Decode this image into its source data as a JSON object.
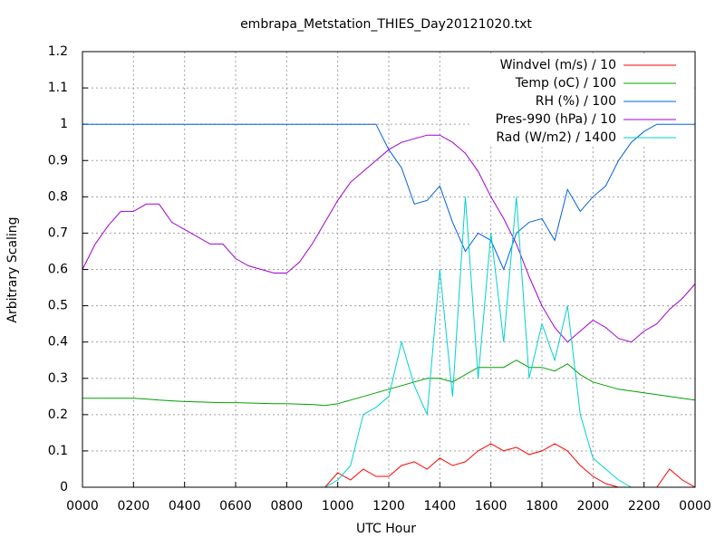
{
  "chart_data": {
    "type": "line",
    "title": "embrapa_Metstation_THIES_Day20121020.txt",
    "x_label": "UTC Hour",
    "y_label": "Arbitrary Scaling",
    "x": [
      0,
      0.5,
      1,
      1.5,
      2,
      2.5,
      3,
      3.5,
      4,
      4.5,
      5,
      5.5,
      6,
      6.5,
      7,
      7.5,
      8,
      8.5,
      9,
      9.5,
      10,
      10.5,
      11,
      11.5,
      12,
      12.5,
      13,
      13.5,
      14,
      14.5,
      15,
      15.5,
      16,
      16.5,
      17,
      17.5,
      18,
      18.5,
      19,
      19.5,
      20,
      20.5,
      21,
      21.5,
      22,
      22.5,
      23,
      23.5,
      24
    ],
    "series": [
      {
        "name": "Windvel (m/s) / 10",
        "color": "#ff0000",
        "values": [
          0,
          0,
          0,
          0,
          0,
          0,
          0,
          0,
          0,
          0,
          0,
          0,
          0,
          0,
          0,
          0,
          0,
          0,
          0,
          0,
          0.04,
          0.02,
          0.05,
          0.03,
          0.03,
          0.06,
          0.07,
          0.05,
          0.08,
          0.06,
          0.07,
          0.1,
          0.12,
          0.1,
          0.11,
          0.09,
          0.1,
          0.12,
          0.1,
          0.06,
          0.03,
          0.01,
          0,
          0,
          0,
          0,
          0.05,
          0.02,
          0
        ]
      },
      {
        "name": "Temp (oC) / 100",
        "color": "#00a000",
        "values": [
          0.245,
          0.245,
          0.245,
          0.245,
          0.245,
          0.243,
          0.24,
          0.238,
          0.236,
          0.235,
          0.234,
          0.233,
          0.233,
          0.232,
          0.231,
          0.23,
          0.23,
          0.229,
          0.228,
          0.225,
          0.23,
          0.24,
          0.25,
          0.26,
          0.27,
          0.28,
          0.29,
          0.3,
          0.3,
          0.29,
          0.31,
          0.33,
          0.33,
          0.33,
          0.35,
          0.33,
          0.33,
          0.32,
          0.34,
          0.31,
          0.29,
          0.28,
          0.27,
          0.265,
          0.26,
          0.255,
          0.25,
          0.245,
          0.24
        ]
      },
      {
        "name": "RH (%) / 100",
        "color": "#0060e0",
        "values": [
          1,
          1,
          1,
          1,
          1,
          1,
          1,
          1,
          1,
          1,
          1,
          1,
          1,
          1,
          1,
          1,
          1,
          1,
          1,
          1,
          1,
          1,
          1,
          1,
          0.93,
          0.88,
          0.78,
          0.79,
          0.83,
          0.73,
          0.65,
          0.7,
          0.68,
          0.6,
          0.7,
          0.73,
          0.74,
          0.68,
          0.82,
          0.76,
          0.8,
          0.83,
          0.9,
          0.95,
          0.98,
          1,
          1,
          1,
          1
        ]
      },
      {
        "name": "Pres-990 (hPa) / 10",
        "color": "#a000d0",
        "values": [
          0.6,
          0.67,
          0.72,
          0.76,
          0.76,
          0.78,
          0.78,
          0.73,
          0.71,
          0.69,
          0.67,
          0.67,
          0.63,
          0.61,
          0.6,
          0.59,
          0.59,
          0.62,
          0.67,
          0.73,
          0.79,
          0.84,
          0.87,
          0.9,
          0.93,
          0.95,
          0.96,
          0.97,
          0.97,
          0.95,
          0.92,
          0.87,
          0.8,
          0.74,
          0.67,
          0.58,
          0.5,
          0.44,
          0.4,
          0.43,
          0.46,
          0.44,
          0.41,
          0.4,
          0.43,
          0.45,
          0.49,
          0.52,
          0.56
        ]
      },
      {
        "name": "Rad (W/m2) / 1400",
        "color": "#00d0d0",
        "values": [
          0,
          0,
          0,
          0,
          0,
          0,
          0,
          0,
          0,
          0,
          0,
          0,
          0,
          0,
          0,
          0,
          0,
          0,
          0,
          0,
          0.02,
          0.06,
          0.2,
          0.22,
          0.25,
          0.4,
          0.28,
          0.2,
          0.6,
          0.25,
          0.8,
          0.3,
          0.7,
          0.4,
          0.8,
          0.3,
          0.45,
          0.35,
          0.5,
          0.2,
          0.08,
          0.05,
          0.02,
          0,
          0,
          0,
          0,
          0,
          0
        ]
      }
    ],
    "xlim": [
      0,
      24
    ],
    "xticks": [
      {
        "value": 0,
        "label": "0000"
      },
      {
        "value": 2,
        "label": "0200"
      },
      {
        "value": 4,
        "label": "0400"
      },
      {
        "value": 6,
        "label": "0600"
      },
      {
        "value": 8,
        "label": "0800"
      },
      {
        "value": 10,
        "label": "1000"
      },
      {
        "value": 12,
        "label": "1200"
      },
      {
        "value": 14,
        "label": "1400"
      },
      {
        "value": 16,
        "label": "1600"
      },
      {
        "value": 18,
        "label": "1800"
      },
      {
        "value": 20,
        "label": "2000"
      },
      {
        "value": 22,
        "label": "2200"
      },
      {
        "value": 24,
        "label": "0000"
      }
    ],
    "ylim": [
      0,
      1.2
    ],
    "yticks": [
      0,
      0.1,
      0.2,
      0.3,
      0.4,
      0.5,
      0.6,
      0.7,
      0.8,
      0.9,
      1,
      1.1,
      1.2
    ],
    "grid": true,
    "legend": "top-right"
  }
}
